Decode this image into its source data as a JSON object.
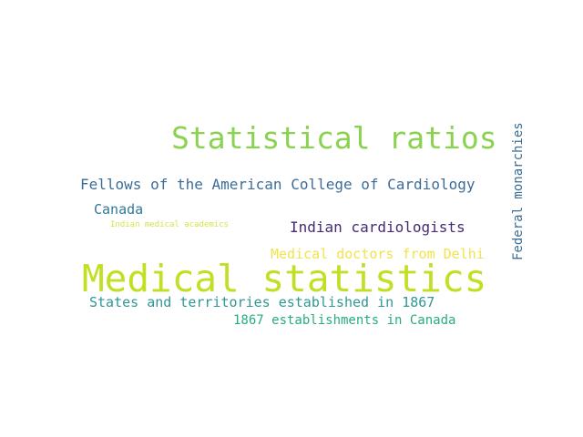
{
  "words": {
    "statistical_ratios": "Statistical ratios",
    "fellows_acc": "Fellows of the American College of Cardiology",
    "canada": "Canada",
    "indian_medical_academics": "Indian medical academics",
    "indian_cardiologists": "Indian cardiologists",
    "medical_doctors_delhi": "Medical doctors from Delhi",
    "medical_statistics": "Medical statistics",
    "states_territories_1867": "States and territories established in 1867",
    "establishments_canada_1867": "1867 establishments in Canada",
    "federal_monarchies": "Federal monarchies"
  },
  "colors": {
    "background": "#ffffff",
    "statistical_ratios": "#8ad24f",
    "fellows_acc": "#3c6d99",
    "canada": "#31799a",
    "indian_medical_academics": "#d6e24a",
    "indian_cardiologists": "#462a73",
    "medical_doctors_delhi": "#f1e34c",
    "medical_statistics": "#c2df23",
    "states_territories_1867": "#2f9797",
    "establishments_canada_1867": "#27ad81",
    "federal_monarchies": "#3b6d96"
  }
}
